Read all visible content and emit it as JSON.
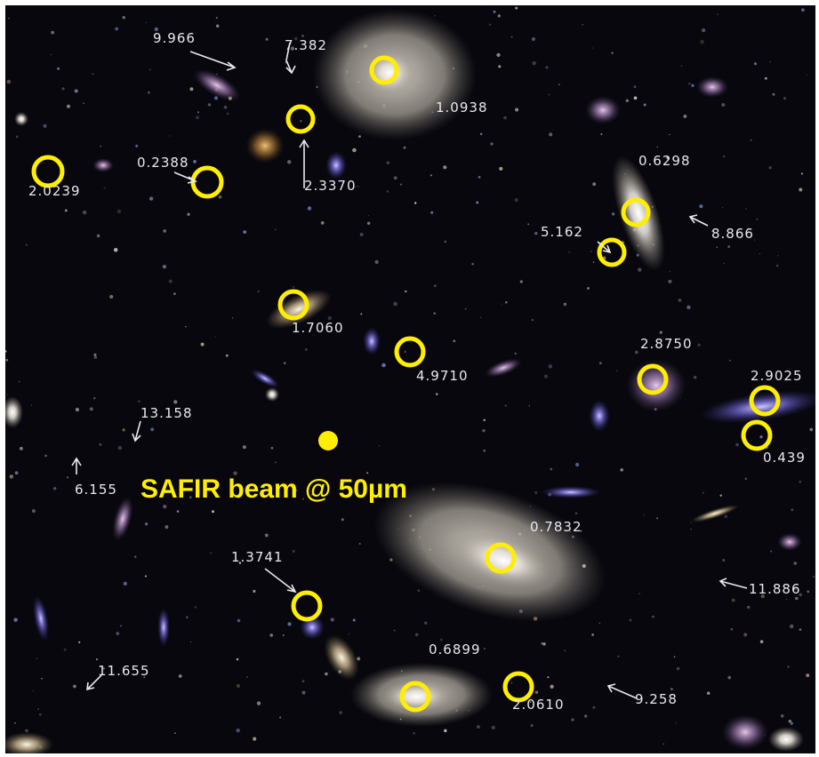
{
  "image": {
    "caption": "SAFIR beam @ 50µm",
    "marker_color": "#ffee00",
    "label_color": "#e8e8ee",
    "background": "#07070d",
    "redshift_labels": [
      "9.966",
      "7.382",
      "1.0938",
      "0.2388",
      "2.0239",
      "2.3370",
      "0.6298",
      "5.162",
      "8.866",
      "1.7060",
      "4.9710",
      "2.8750",
      "2.9025",
      "0.439",
      "13.158",
      "6.155",
      "0.7832",
      "1.3741",
      "11.886",
      "0.6899",
      "11.655",
      "2.0610",
      "9.258"
    ]
  }
}
